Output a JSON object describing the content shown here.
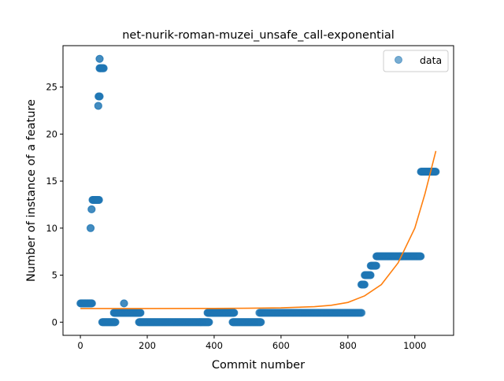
{
  "chart_data": {
    "type": "scatter",
    "title": "net-nurik-roman-muzei_unsafe_call-exponential",
    "xlabel": "Commit number",
    "ylabel": "Number of instance of a feature",
    "xlim": [
      -52,
      1116
    ],
    "ylim": [
      -1.4,
      29.4
    ],
    "x_ticks": [
      0,
      200,
      400,
      600,
      800,
      1000
    ],
    "y_ticks": [
      0,
      5,
      10,
      15,
      20,
      25
    ],
    "legend": {
      "placement": "top-right",
      "entries": [
        "data"
      ]
    },
    "grid": false,
    "series": [
      {
        "name": "data",
        "kind": "scatter",
        "color": "#1f77b4",
        "runs": [
          {
            "x_start": 0,
            "x_end": 35,
            "y": 2
          },
          {
            "x_start": 30,
            "x_end": 31,
            "y": 10
          },
          {
            "x_start": 33,
            "x_end": 34,
            "y": 12
          },
          {
            "x_start": 36,
            "x_end": 56,
            "y": 13
          },
          {
            "x_start": 53,
            "x_end": 54,
            "y": 23
          },
          {
            "x_start": 54,
            "x_end": 58,
            "y": 24
          },
          {
            "x_start": 57,
            "x_end": 58,
            "y": 28
          },
          {
            "x_start": 57,
            "x_end": 70,
            "y": 27
          },
          {
            "x_start": 65,
            "x_end": 105,
            "y": 0
          },
          {
            "x_start": 100,
            "x_end": 180,
            "y": 1
          },
          {
            "x_start": 130,
            "x_end": 131,
            "y": 2
          },
          {
            "x_start": 175,
            "x_end": 385,
            "y": 0
          },
          {
            "x_start": 380,
            "x_end": 460,
            "y": 1
          },
          {
            "x_start": 455,
            "x_end": 540,
            "y": 0
          },
          {
            "x_start": 535,
            "x_end": 842,
            "y": 1
          },
          {
            "x_start": 840,
            "x_end": 850,
            "y": 4
          },
          {
            "x_start": 850,
            "x_end": 868,
            "y": 5
          },
          {
            "x_start": 868,
            "x_end": 885,
            "y": 6
          },
          {
            "x_start": 885,
            "x_end": 1018,
            "y": 7
          },
          {
            "x_start": 1018,
            "x_end": 1063,
            "y": 16
          }
        ]
      },
      {
        "name": "",
        "kind": "line",
        "color": "#ff7f0e",
        "points": [
          [
            0,
            1.45
          ],
          [
            200,
            1.45
          ],
          [
            400,
            1.46
          ],
          [
            500,
            1.48
          ],
          [
            600,
            1.52
          ],
          [
            700,
            1.65
          ],
          [
            750,
            1.8
          ],
          [
            800,
            2.1
          ],
          [
            850,
            2.8
          ],
          [
            900,
            4.0
          ],
          [
            950,
            6.3
          ],
          [
            1000,
            10.0
          ],
          [
            1030,
            13.6
          ],
          [
            1063,
            18.2
          ]
        ]
      }
    ]
  }
}
